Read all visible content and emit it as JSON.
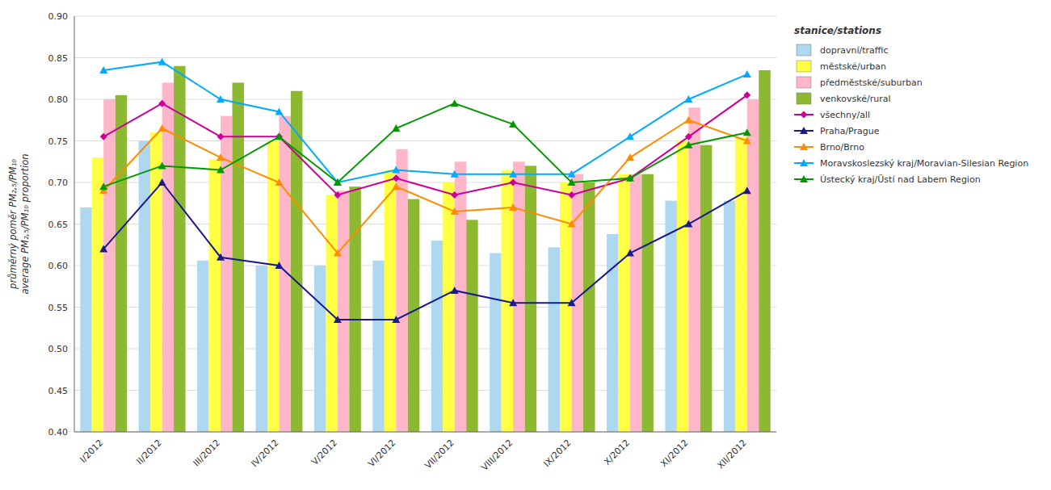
{
  "chart_data": {
    "type": "bar",
    "ylabel": "průměrný poměr PM₂,₅/PM₁₀\naverage PM₂,₅/PM₁₀ proportion",
    "categories": [
      "I/2012",
      "II/2012",
      "III/2012",
      "IV/2012",
      "V/2012",
      "VI/2012",
      "VII/2012",
      "VIII/2012",
      "IX/2012",
      "X/2012",
      "XI/2012",
      "XII/2012"
    ],
    "series": [
      {
        "name": "dopravní/traffic",
        "type": "bar",
        "color": "#add8f0",
        "values": [
          0.67,
          0.75,
          0.606,
          0.6,
          0.6,
          0.606,
          0.63,
          0.615,
          0.622,
          0.638,
          0.678,
          0.678
        ]
      },
      {
        "name": "městské/urban",
        "type": "bar",
        "color": "#ffff44",
        "values": [
          0.73,
          0.76,
          0.728,
          0.75,
          0.685,
          0.715,
          0.7,
          0.715,
          0.7,
          0.71,
          0.75,
          0.755
        ]
      },
      {
        "name": "předměstské/suburban",
        "type": "bar",
        "color": "#ffb6c8",
        "values": [
          0.8,
          0.82,
          0.78,
          0.78,
          0.69,
          0.74,
          0.725,
          0.725,
          0.71,
          0.71,
          0.79,
          0.8
        ]
      },
      {
        "name": "venkovské/rural",
        "type": "bar",
        "color": "#8db832",
        "values": [
          0.805,
          0.84,
          0.82,
          0.81,
          0.695,
          0.68,
          0.655,
          0.72,
          0.7,
          0.71,
          0.745,
          0.835
        ]
      },
      {
        "name": "všechny/all",
        "type": "line",
        "marker": "diamond",
        "color": "#cc0099",
        "values": [
          0.755,
          0.795,
          0.755,
          0.755,
          0.685,
          0.705,
          0.685,
          0.7,
          0.685,
          0.705,
          0.755,
          0.805
        ]
      },
      {
        "name": "Praha/Prague",
        "type": "line",
        "marker": "triangle",
        "color": "#1a1a8c",
        "values": [
          0.62,
          0.7,
          0.61,
          0.6,
          0.535,
          0.535,
          0.57,
          0.555,
          0.555,
          0.615,
          0.65,
          0.69
        ]
      },
      {
        "name": "Brno/Brno",
        "type": "line",
        "marker": "triangle",
        "color": "#ff8c00",
        "values": [
          0.69,
          0.765,
          0.73,
          0.7,
          0.615,
          0.695,
          0.665,
          0.67,
          0.65,
          0.73,
          0.775,
          0.75
        ]
      },
      {
        "name": "Moravskoslezský kraj/Moravian-Silesian Region",
        "type": "line",
        "marker": "triangle",
        "color": "#00aaff",
        "values": [
          0.835,
          0.845,
          0.8,
          0.785,
          0.7,
          0.715,
          0.71,
          0.71,
          0.71,
          0.755,
          0.8,
          0.83
        ]
      },
      {
        "name": "Ústecký kraj/Üstí nad Labem Region",
        "type": "line",
        "marker": "triangle",
        "color": "#009900",
        "values": [
          0.695,
          0.72,
          0.715,
          0.755,
          0.7,
          0.765,
          0.795,
          0.77,
          0.7,
          0.705,
          0.745,
          0.76
        ]
      }
    ],
    "ylim": [
      0.4,
      0.9
    ],
    "yticks": [
      {
        "value": 0.4,
        "label": "0.40"
      },
      0.45,
      {
        "value": 0.5,
        "label": "0.50"
      },
      0.55,
      {
        "value": 0.6,
        "label": "0.60"
      },
      0.65,
      {
        "value": 0.7,
        "label": "0.70"
      },
      0.75,
      {
        "value": 0.8,
        "label": "0.80"
      },
      0.85,
      {
        "value": 0.9,
        "label": "0.90"
      }
    ],
    "grid": true,
    "legend": "right",
    "legend_title": "stanice/stations"
  }
}
